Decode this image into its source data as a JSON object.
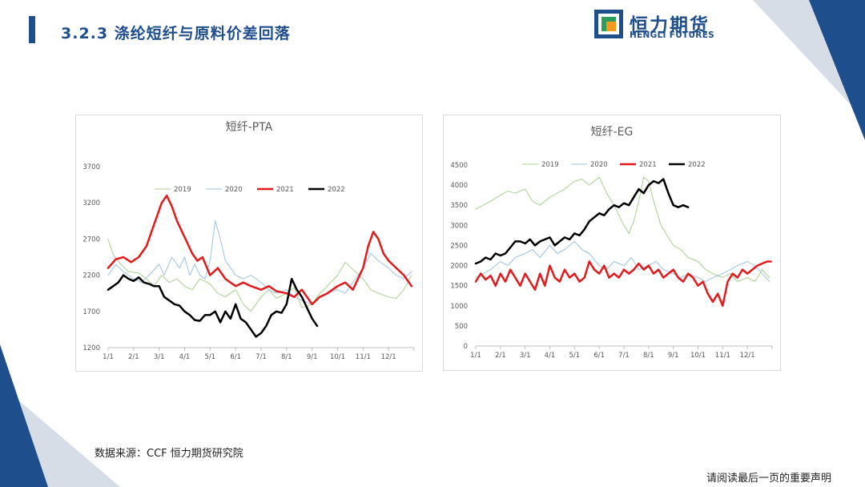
{
  "header": {
    "title": "3.2.3 涤纶短纤与原料价差回落",
    "logo_cn": "恒力期货",
    "logo_en": "HENGLI FUTURES"
  },
  "footer": {
    "source": "数据来源：CCF 恒力期货研究院",
    "disclaimer": "请阅读最后一页的重要声明"
  },
  "colors": {
    "brand": "#1f4e8c",
    "s2019": "#a9d18e",
    "s2020": "#9dc3e6",
    "s2021": "#e31a1c",
    "s2022": "#000000"
  },
  "chart_data": [
    {
      "type": "line",
      "title": "短纤-PTA",
      "x_ticks": [
        "1/1",
        "2/1",
        "3/1",
        "4/1",
        "5/1",
        "6/1",
        "7/1",
        "8/1",
        "9/1",
        "10/1",
        "11/1",
        "12/1"
      ],
      "y_ticks": [
        "1200",
        "1700",
        "2200",
        "2700",
        "3200",
        "3700"
      ],
      "ylim": [
        1200,
        3700
      ],
      "legend": "top",
      "grid": false,
      "series": [
        {
          "name": "2019",
          "color": "#a9d18e",
          "width": 1,
          "x": [
            0,
            0.2,
            0.5,
            0.8,
            1.2,
            1.5,
            1.8,
            2.1,
            2.4,
            2.7,
            3,
            3.3,
            3.6,
            4,
            4.3,
            4.6,
            5,
            5.3,
            5.6,
            6,
            6.3,
            6.6,
            7,
            7.3,
            7.6,
            8,
            8.3,
            8.6,
            9,
            9.3,
            9.6,
            10,
            10.3,
            10.6,
            11,
            11.3,
            11.6,
            11.9
          ],
          "y": [
            2700,
            2480,
            2350,
            2250,
            2230,
            2150,
            2050,
            2200,
            2100,
            2150,
            2050,
            2000,
            2150,
            2080,
            1950,
            1900,
            2000,
            1800,
            1700,
            1900,
            2000,
            1880,
            1950,
            2030,
            1750,
            1800,
            1950,
            2050,
            2200,
            2380,
            2280,
            2150,
            2000,
            1950,
            1900,
            1880,
            2000,
            2200
          ]
        },
        {
          "name": "2020",
          "color": "#9dc3e6",
          "width": 1,
          "x": [
            0,
            0.3,
            0.6,
            1,
            1.3,
            1.6,
            2,
            2.2,
            2.5,
            2.8,
            3,
            3.2,
            3.4,
            3.6,
            3.8,
            4,
            4.2,
            4.4,
            4.6,
            4.8,
            5,
            5.3,
            5.6,
            6,
            6.3,
            6.6,
            7,
            7.3,
            7.6,
            8,
            8.3,
            8.6,
            9,
            9.3,
            9.6,
            10,
            10.3,
            10.6,
            11,
            11.3,
            11.6,
            11.9
          ],
          "y": [
            2200,
            2350,
            2250,
            2150,
            2100,
            2200,
            2350,
            2200,
            2450,
            2300,
            2450,
            2200,
            2350,
            2200,
            2150,
            2400,
            2950,
            2700,
            2400,
            2300,
            2200,
            2150,
            2200,
            2100,
            2000,
            1950,
            2000,
            1900,
            1850,
            1800,
            1900,
            1950,
            2000,
            1950,
            2100,
            2300,
            2500,
            2400,
            2300,
            2200,
            2150,
            2250
          ]
        },
        {
          "name": "2021",
          "color": "#e31a1c",
          "width": 2.5,
          "x": [
            0,
            0.3,
            0.6,
            0.9,
            1.2,
            1.5,
            1.8,
            2.1,
            2.3,
            2.5,
            2.7,
            2.9,
            3.1,
            3.3,
            3.5,
            3.7,
            4,
            4.3,
            4.6,
            5,
            5.3,
            5.6,
            6,
            6.3,
            6.6,
            7,
            7.3,
            7.6,
            8,
            8.3,
            8.6,
            9,
            9.3,
            9.6,
            10,
            10.2,
            10.4,
            10.6,
            10.8,
            11,
            11.3,
            11.6,
            11.9
          ],
          "y": [
            2300,
            2420,
            2450,
            2380,
            2450,
            2600,
            2900,
            3200,
            3300,
            3150,
            2950,
            2800,
            2650,
            2500,
            2400,
            2450,
            2200,
            2300,
            2150,
            2050,
            2100,
            2050,
            2000,
            2050,
            1980,
            1950,
            1900,
            2000,
            1800,
            1900,
            1950,
            2050,
            2100,
            2000,
            2300,
            2600,
            2800,
            2700,
            2500,
            2400,
            2300,
            2200,
            2050
          ]
        },
        {
          "name": "2022",
          "color": "#000000",
          "width": 2.5,
          "x": [
            0,
            0.2,
            0.4,
            0.6,
            0.8,
            1,
            1.2,
            1.4,
            1.6,
            1.8,
            2,
            2.2,
            2.4,
            2.6,
            2.8,
            3,
            3.2,
            3.4,
            3.6,
            3.8,
            4,
            4.2,
            4.4,
            4.6,
            4.8,
            5,
            5.2,
            5.4,
            5.6,
            5.8,
            6,
            6.2,
            6.4,
            6.6,
            6.8,
            7,
            7.2,
            7.4,
            7.6,
            7.8,
            8,
            8.2
          ],
          "y": [
            2000,
            2050,
            2100,
            2200,
            2150,
            2120,
            2170,
            2100,
            2080,
            2050,
            2050,
            1900,
            1850,
            1800,
            1780,
            1700,
            1650,
            1580,
            1570,
            1650,
            1650,
            1700,
            1550,
            1700,
            1600,
            1800,
            1600,
            1550,
            1450,
            1350,
            1400,
            1500,
            1650,
            1700,
            1680,
            1800,
            2150,
            2000,
            1900,
            1750,
            1600,
            1500
          ]
        }
      ]
    },
    {
      "type": "line",
      "title": "短纤-EG",
      "x_ticks": [
        "1/1",
        "2/1",
        "3/1",
        "4/1",
        "5/1",
        "6/1",
        "7/1",
        "8/1",
        "9/1",
        "10/1",
        "11/1",
        "12/1"
      ],
      "y_ticks": [
        "0",
        "500",
        "1000",
        "1500",
        "2000",
        "2500",
        "3000",
        "3500",
        "4000",
        "4500"
      ],
      "ylim": [
        0,
        4500
      ],
      "legend": "top",
      "grid": false,
      "series": [
        {
          "name": "2019",
          "color": "#a9d18e",
          "width": 1,
          "x": [
            0,
            0.3,
            0.6,
            1,
            1.3,
            1.6,
            2,
            2.3,
            2.6,
            3,
            3.3,
            3.6,
            4,
            4.3,
            4.6,
            5,
            5.3,
            5.6,
            6,
            6.2,
            6.4,
            6.6,
            6.8,
            7,
            7.2,
            7.5,
            7.8,
            8,
            8.3,
            8.6,
            9,
            9.3,
            9.6,
            10,
            10.3,
            10.6,
            11,
            11.3,
            11.6,
            11.9
          ],
          "y": [
            3400,
            3500,
            3600,
            3750,
            3850,
            3800,
            3900,
            3600,
            3500,
            3700,
            3800,
            3900,
            4100,
            4150,
            4000,
            4200,
            3800,
            3500,
            3000,
            2800,
            3100,
            3600,
            4200,
            4100,
            3600,
            3000,
            2700,
            2500,
            2400,
            2200,
            2100,
            1900,
            1800,
            1700,
            1800,
            1600,
            1700,
            1600,
            1900,
            1700
          ]
        },
        {
          "name": "2020",
          "color": "#9dc3e6",
          "width": 1,
          "x": [
            0,
            0.3,
            0.6,
            1,
            1.3,
            1.6,
            2,
            2.3,
            2.6,
            3,
            3.3,
            3.6,
            4,
            4.3,
            4.6,
            5,
            5.3,
            5.6,
            6,
            6.3,
            6.6,
            7,
            7.3,
            7.6,
            8,
            8.3,
            8.6,
            9,
            9.3,
            9.6,
            10,
            10.3,
            10.6,
            11,
            11.3,
            11.6,
            11.9
          ],
          "y": [
            1700,
            1800,
            1900,
            2100,
            2000,
            2200,
            2300,
            2400,
            2200,
            2500,
            2300,
            2400,
            2600,
            2400,
            2300,
            2000,
            1900,
            2100,
            2000,
            2200,
            1900,
            2000,
            2100,
            1900,
            1800,
            1700,
            1800,
            1700,
            1600,
            1700,
            1800,
            1900,
            2000,
            2100,
            2000,
            1800,
            1600
          ]
        },
        {
          "name": "2021",
          "color": "#e31a1c",
          "width": 2.5,
          "x": [
            0,
            0.2,
            0.4,
            0.6,
            0.8,
            1,
            1.2,
            1.4,
            1.6,
            1.8,
            2,
            2.2,
            2.4,
            2.6,
            2.8,
            3,
            3.2,
            3.4,
            3.6,
            3.8,
            4,
            4.2,
            4.4,
            4.6,
            4.8,
            5,
            5.2,
            5.4,
            5.6,
            5.8,
            6,
            6.2,
            6.4,
            6.6,
            6.8,
            7,
            7.2,
            7.4,
            7.6,
            7.8,
            8,
            8.2,
            8.4,
            8.6,
            8.8,
            9,
            9.2,
            9.4,
            9.6,
            9.8,
            10,
            10.2,
            10.4,
            10.6,
            10.8,
            11,
            11.2,
            11.4,
            11.6,
            11.8,
            11.95
          ],
          "y": [
            1600,
            1800,
            1650,
            1750,
            1500,
            1800,
            1600,
            1900,
            1700,
            1500,
            1800,
            1600,
            1400,
            1800,
            1500,
            2000,
            1700,
            1600,
            1900,
            1700,
            1800,
            1600,
            1700,
            2100,
            1900,
            1800,
            2000,
            1700,
            1800,
            1700,
            1900,
            1800,
            1900,
            2050,
            1900,
            2000,
            1800,
            1900,
            1700,
            1800,
            1900,
            1700,
            1600,
            1800,
            1700,
            1500,
            1600,
            1300,
            1100,
            1300,
            1000,
            1600,
            1800,
            1700,
            1900,
            1800,
            1900,
            2000,
            2050,
            2100,
            2100
          ]
        },
        {
          "name": "2022",
          "color": "#000000",
          "width": 2.5,
          "x": [
            0,
            0.2,
            0.4,
            0.6,
            0.8,
            1,
            1.2,
            1.4,
            1.6,
            1.8,
            2,
            2.2,
            2.4,
            2.6,
            2.8,
            3,
            3.2,
            3.4,
            3.6,
            3.8,
            4,
            4.2,
            4.4,
            4.6,
            4.8,
            5,
            5.2,
            5.4,
            5.6,
            5.8,
            6,
            6.2,
            6.4,
            6.6,
            6.8,
            7,
            7.2,
            7.4,
            7.6,
            7.8,
            8,
            8.2,
            8.4,
            8.6
          ],
          "y": [
            2050,
            2100,
            2200,
            2150,
            2300,
            2250,
            2300,
            2450,
            2600,
            2600,
            2550,
            2650,
            2500,
            2600,
            2650,
            2700,
            2500,
            2600,
            2700,
            2650,
            2800,
            2750,
            2900,
            3100,
            3200,
            3300,
            3250,
            3400,
            3500,
            3450,
            3550,
            3500,
            3700,
            3900,
            3800,
            4000,
            4100,
            4050,
            4150,
            3800,
            3500,
            3450,
            3500,
            3450
          ]
        }
      ]
    }
  ]
}
